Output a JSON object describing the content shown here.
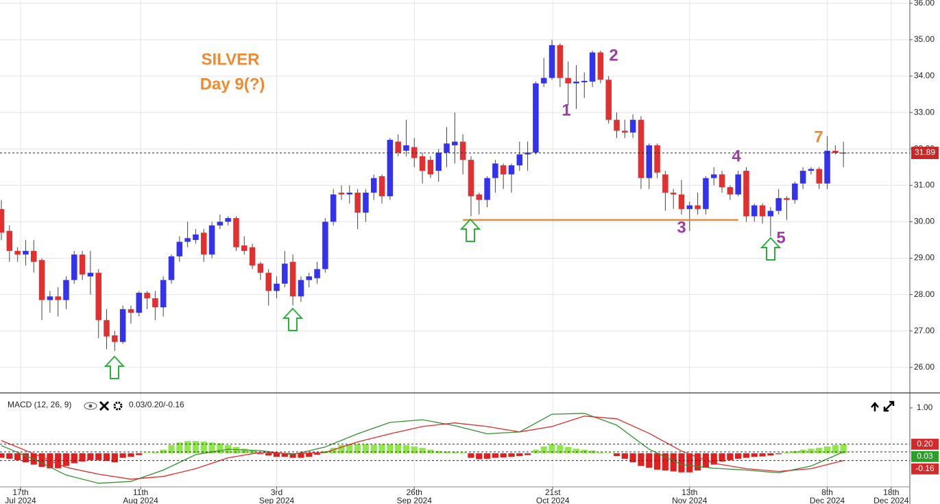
{
  "chart_data": [
    {
      "type": "candlestick",
      "title": "SILVER",
      "subtitle": "Day 9(?)",
      "up_color": "#3333ee",
      "down_color": "#e03030",
      "ylim": [
        25.3,
        36.09
      ],
      "xlim": [
        -0.17,
        112.2
      ],
      "yticks": [
        {
          "value": 26,
          "label": "26.00"
        },
        {
          "value": 27,
          "label": "27.00"
        },
        {
          "value": 28,
          "label": "28.00"
        },
        {
          "value": 29,
          "label": "29.00"
        },
        {
          "value": 30,
          "label": "30.00"
        },
        {
          "value": 31,
          "label": "31.00"
        },
        {
          "value": 32,
          "label": "32.00"
        },
        {
          "value": 33,
          "label": "33.00"
        },
        {
          "value": 34,
          "label": "34.00"
        },
        {
          "value": 35,
          "label": "35.00"
        },
        {
          "value": 36,
          "label": "36.00"
        }
      ],
      "grid": true,
      "last_price": 31.89,
      "support_line": {
        "value": 30.05,
        "from": 57,
        "to": 91,
        "color": "#f08a30"
      },
      "annotations": [
        {
          "text": "1",
          "color": "#9a3fa0"
        },
        {
          "text": "2",
          "color": "#9a3fa0"
        },
        {
          "text": "3",
          "color": "#9a3fa0"
        },
        {
          "text": "4",
          "color": "#9a3fa0"
        },
        {
          "text": "5",
          "color": "#9a3fa0"
        },
        {
          "text": "7",
          "color": "#f08a30"
        }
      ],
      "open": [
        30.35,
        29.75,
        29.2,
        29.1,
        29.2,
        28.95,
        27.85,
        27.95,
        27.85,
        28.4,
        29.1,
        28.5,
        28.6,
        27.3,
        26.88,
        26.7,
        27.6,
        27.5,
        28.05,
        27.9,
        27.65,
        28.4,
        29.05,
        29.45,
        29.5,
        29.7,
        29.1,
        29.9,
        30.0,
        30.1,
        29.35,
        29.3,
        28.85,
        28.6,
        28.1,
        28.3,
        28.9,
        27.95,
        28.4,
        28.45,
        28.7,
        30.0,
        30.8,
        30.75,
        30.8,
        30.25,
        30.8,
        31.25,
        30.7,
        32.2,
        31.95,
        32.05,
        31.8,
        31.7,
        31.4,
        31.9,
        32.1,
        32.2,
        31.7,
        30.75,
        30.6,
        31.2,
        31.55,
        31.3,
        31.55,
        31.85,
        31.9,
        33.8,
        33.95,
        34.85,
        33.95,
        33.8,
        33.83,
        33.85,
        34.65,
        33.9,
        32.8,
        32.5,
        32.45,
        32.8,
        31.2,
        32.1,
        31.3,
        30.8,
        30.75,
        30.35,
        30.45,
        30.35,
        31.2,
        31.3,
        30.95,
        30.75,
        31.4,
        30.15,
        30.45,
        30.15,
        30.3,
        30.65,
        30.6,
        31.05,
        31.4,
        31.45,
        31.05,
        31.95,
        31.9
      ],
      "high": [
        30.6,
        29.9,
        29.3,
        29.5,
        29.5,
        29.0,
        28.1,
        28.2,
        28.5,
        29.2,
        29.2,
        29.2,
        28.7,
        27.6,
        27.0,
        27.7,
        27.7,
        28.1,
        28.1,
        28.1,
        28.5,
        29.1,
        29.6,
        30.0,
        29.8,
        29.8,
        30.0,
        30.2,
        30.15,
        30.15,
        29.6,
        29.4,
        28.9,
        28.7,
        28.5,
        29.2,
        29.1,
        28.5,
        28.6,
        28.9,
        30.1,
        30.9,
        31.0,
        31.0,
        30.9,
        30.9,
        31.3,
        31.3,
        32.3,
        32.4,
        32.8,
        32.3,
        31.9,
        31.8,
        32.0,
        32.6,
        33.0,
        32.4,
        31.8,
        30.8,
        31.25,
        31.7,
        31.6,
        31.6,
        32.2,
        32.2,
        33.85,
        34.5,
        35.0,
        34.9,
        34.4,
        34.3,
        34.1,
        34.7,
        34.7,
        34.0,
        33.0,
        32.8,
        32.95,
        32.9,
        32.15,
        32.15,
        31.4,
        30.9,
        31.15,
        30.55,
        30.8,
        31.25,
        31.5,
        31.4,
        31.0,
        31.4,
        31.5,
        30.5,
        30.5,
        30.4,
        30.9,
        30.7,
        31.1,
        31.5,
        31.5,
        31.5,
        32.35,
        32.1,
        32.2
      ],
      "low": [
        29.5,
        28.9,
        28.9,
        28.8,
        28.6,
        27.3,
        27.5,
        27.4,
        27.6,
        28.3,
        28.4,
        28.0,
        26.8,
        26.5,
        26.45,
        26.65,
        27.2,
        27.4,
        27.6,
        27.3,
        27.4,
        28.3,
        28.9,
        29.3,
        29.4,
        28.9,
        29.0,
        29.8,
        29.9,
        29.2,
        29.1,
        28.7,
        28.4,
        27.7,
        27.9,
        28.2,
        27.7,
        27.8,
        28.2,
        28.3,
        28.6,
        29.9,
        30.6,
        30.5,
        29.8,
        30.0,
        30.6,
        30.5,
        30.6,
        31.8,
        31.8,
        31.5,
        31.05,
        31.2,
        31.1,
        31.5,
        31.6,
        31.3,
        30.15,
        30.2,
        30.4,
        30.8,
        30.9,
        30.8,
        31.4,
        31.4,
        31.85,
        33.7,
        33.9,
        33.7,
        33.2,
        33.1,
        33.4,
        33.7,
        33.8,
        32.7,
        32.3,
        32.3,
        32.3,
        30.9,
        30.9,
        31.2,
        30.3,
        30.35,
        30.2,
        29.75,
        30.2,
        30.2,
        31.0,
        30.8,
        30.6,
        30.7,
        30.0,
        30.0,
        29.95,
        29.6,
        30.2,
        30.05,
        30.5,
        30.9,
        31.3,
        30.9,
        30.9,
        31.85,
        31.5
      ],
      "close": [
        29.7,
        29.2,
        29.1,
        29.2,
        28.9,
        27.85,
        27.95,
        27.85,
        28.4,
        29.1,
        28.55,
        28.6,
        27.3,
        26.85,
        26.7,
        27.6,
        27.5,
        28.05,
        27.9,
        27.65,
        28.4,
        29.05,
        29.45,
        29.55,
        29.65,
        29.1,
        29.9,
        30.0,
        30.1,
        29.3,
        29.2,
        28.8,
        28.6,
        28.1,
        28.3,
        28.85,
        27.95,
        28.4,
        28.5,
        28.7,
        30.0,
        30.75,
        30.75,
        30.8,
        30.25,
        30.8,
        31.2,
        30.7,
        32.25,
        31.9,
        32.1,
        31.75,
        31.4,
        31.3,
        31.9,
        32.15,
        32.2,
        31.7,
        30.7,
        30.6,
        31.2,
        31.6,
        31.3,
        31.55,
        31.85,
        31.9,
        33.8,
        33.95,
        34.85,
        33.95,
        33.8,
        33.85,
        33.87,
        34.65,
        33.9,
        32.8,
        32.5,
        32.45,
        32.8,
        31.2,
        32.1,
        31.35,
        30.8,
        30.75,
        30.35,
        30.45,
        30.35,
        31.2,
        31.3,
        30.95,
        30.75,
        31.3,
        30.15,
        30.45,
        30.15,
        30.3,
        30.65,
        30.6,
        31.05,
        31.4,
        31.45,
        31.05,
        31.95,
        31.89,
        31.89
      ]
    },
    {
      "type": "macd",
      "title": "MACD (12, 26, 9)",
      "readout": "0.03/0.20/-0.16",
      "ylim": [
        -0.74,
        1.3
      ],
      "xlim": [
        -0.17,
        112.2
      ],
      "yticks": [
        {
          "value": 1,
          "label": "1.00"
        }
      ],
      "markers": [
        {
          "value": 0.2,
          "label": "0.20",
          "color": "#d42a2a"
        },
        {
          "value": 0.03,
          "color": "#2aa02a"
        },
        {
          "value": -0.16,
          "color": "#d42a2a"
        }
      ],
      "xticks": [
        {
          "value": 2.37,
          "label": "17th",
          "sublabel": "Jul 2024"
        },
        {
          "value": 17.2,
          "label": "11th",
          "sublabel": "Aug 2024"
        },
        {
          "value": 34.0,
          "label": "3rd",
          "sublabel": "Sep 2024"
        },
        {
          "value": 51.0,
          "label": "26th",
          "sublabel": "Sep 2024"
        },
        {
          "value": 68.1,
          "label": "21st",
          "sublabel": "Oct 2024"
        },
        {
          "value": 85.0,
          "label": "13th",
          "sublabel": "Nov 2024"
        },
        {
          "value": 102.0,
          "label": "8th",
          "sublabel": "Dec 2024"
        },
        {
          "value": 109.9,
          "label": "18th",
          "sublabel": "Dec 2024"
        }
      ],
      "histogram": {
        "up_color": "#8ee84a",
        "down_color": "#e02020",
        "values": [
          -0.1,
          -0.12,
          -0.15,
          -0.2,
          -0.25,
          -0.3,
          -0.33,
          -0.33,
          -0.28,
          -0.22,
          -0.18,
          -0.15,
          -0.15,
          -0.17,
          -0.2,
          -0.1,
          -0.08,
          -0.04,
          0.01,
          0.02,
          0.08,
          0.18,
          0.24,
          0.27,
          0.27,
          0.26,
          0.24,
          0.22,
          0.18,
          0.14,
          0.1,
          0.06,
          -0.02,
          -0.05,
          -0.08,
          -0.08,
          -0.1,
          -0.1,
          -0.08,
          -0.03,
          0.05,
          0.12,
          0.18,
          0.2,
          0.2,
          0.2,
          0.19,
          0.2,
          0.2,
          0.2,
          0.18,
          0.15,
          0.12,
          0.08,
          0.05,
          0.04,
          0.03,
          0.02,
          -0.1,
          -0.13,
          -0.12,
          -0.1,
          -0.09,
          -0.08,
          -0.06,
          -0.04,
          0.08,
          0.15,
          0.2,
          0.18,
          0.14,
          0.1,
          0.08,
          0.06,
          0.02,
          0.01,
          -0.06,
          -0.12,
          -0.2,
          -0.28,
          -0.32,
          -0.36,
          -0.38,
          -0.4,
          -0.42,
          -0.42,
          -0.38,
          -0.32,
          -0.25,
          -0.18,
          -0.15,
          -0.12,
          -0.1,
          -0.08,
          -0.07,
          -0.05,
          -0.02,
          0.02,
          0.05,
          0.08,
          0.1,
          0.12,
          0.15,
          0.18,
          0.2
        ]
      },
      "x": [
        0,
        4,
        8,
        12,
        16,
        20,
        24,
        28,
        32,
        36,
        40,
        44,
        48,
        52,
        56,
        60,
        64,
        68,
        72,
        76,
        80,
        84,
        88,
        92,
        96,
        100,
        104
      ],
      "series": [
        {
          "color": "#2f8f2f",
          "values": [
            0.17,
            -0.13,
            -0.48,
            -0.66,
            -0.62,
            -0.37,
            -0.03,
            0.09,
            0.06,
            -0.03,
            0.14,
            0.43,
            0.68,
            0.74,
            0.61,
            0.43,
            0.47,
            0.86,
            0.88,
            0.62,
            0.09,
            -0.25,
            -0.33,
            -0.37,
            -0.43,
            -0.28,
            0.03
          ]
        },
        {
          "color": "#e02a2a",
          "values": [
            0.28,
            -0.01,
            -0.31,
            -0.46,
            -0.57,
            -0.51,
            -0.34,
            -0.1,
            0.02,
            -0.01,
            0.02,
            0.25,
            0.43,
            0.59,
            0.67,
            0.59,
            0.47,
            0.59,
            0.82,
            0.76,
            0.44,
            0.05,
            -0.22,
            -0.34,
            -0.4,
            -0.34,
            -0.16
          ]
        }
      ]
    }
  ]
}
